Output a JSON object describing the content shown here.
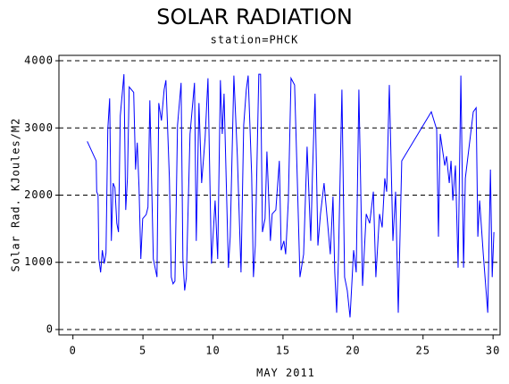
{
  "chart_data": {
    "type": "line",
    "title": "SOLAR RADIATION",
    "subtitle": "station=PHCK",
    "x_label": "MAY 2011",
    "y_label": "Solar Rad. KJoules/M2",
    "xlim": [
      -1,
      30.5
    ],
    "ylim": [
      -80,
      4080
    ],
    "xticks": [
      0,
      5,
      10,
      15,
      20,
      25,
      30
    ],
    "yticks": [
      0,
      1000,
      2000,
      3000,
      4000
    ],
    "grid": true,
    "series": [
      {
        "name": "Solar Rad.",
        "color": "#0000ff",
        "x": [
          1.02,
          1.66,
          1.7,
          1.79,
          1.85,
          1.98,
          2.1,
          2.23,
          2.36,
          2.49,
          2.62,
          2.74,
          2.87,
          3.0,
          3.13,
          3.25,
          3.38,
          3.64,
          3.77,
          3.89,
          4.02,
          4.34,
          4.47,
          4.59,
          4.72,
          4.85,
          4.98,
          5.23,
          5.36,
          5.49,
          5.74,
          6.0,
          6.13,
          6.32,
          6.51,
          6.64,
          6.89,
          7.02,
          7.15,
          7.28,
          7.47,
          7.72,
          7.85,
          7.98,
          8.1,
          8.36,
          8.68,
          8.81,
          9.0,
          9.19,
          9.44,
          9.64,
          9.89,
          10.15,
          10.34,
          10.53,
          10.66,
          10.79,
          11.1,
          11.23,
          11.49,
          11.74,
          12.0,
          12.19,
          12.38,
          12.51,
          12.76,
          12.89,
          13.02,
          13.27,
          13.4,
          13.53,
          13.72,
          13.85,
          14.1,
          14.23,
          14.49,
          14.74,
          14.87,
          15.06,
          15.19,
          15.38,
          15.57,
          15.83,
          16.02,
          16.21,
          16.47,
          16.72,
          16.98,
          17.1,
          17.29,
          17.49,
          17.68,
          17.93,
          18.19,
          18.38,
          18.57,
          18.7,
          18.83,
          18.96,
          19.21,
          19.4,
          19.59,
          19.79,
          20.04,
          20.23,
          20.42,
          20.68,
          20.94,
          21.19,
          21.45,
          21.63,
          21.89,
          22.08,
          22.27,
          22.4,
          22.59,
          22.85,
          23.04,
          23.23,
          23.48,
          25.59,
          25.97,
          26.1,
          26.23,
          26.55,
          26.68,
          26.87,
          27.0,
          27.13,
          27.31,
          27.5,
          27.7,
          27.89,
          28.02,
          28.59,
          28.79,
          28.91,
          29.04,
          29.3,
          29.62,
          29.81,
          29.94,
          30.06
        ],
        "values": [
          2800,
          2510,
          2050,
          2000,
          1050,
          850,
          1180,
          980,
          1140,
          2980,
          3440,
          1320,
          2180,
          2110,
          1580,
          1450,
          3180,
          3800,
          1780,
          2250,
          3610,
          3530,
          2380,
          2780,
          2110,
          1050,
          1650,
          1710,
          1820,
          3410,
          1050,
          780,
          3370,
          3110,
          3570,
          3710,
          2250,
          780,
          680,
          720,
          3040,
          3670,
          1050,
          580,
          780,
          2910,
          3670,
          1320,
          3370,
          2180,
          2850,
          3740,
          980,
          1920,
          1050,
          3710,
          2910,
          3510,
          920,
          1380,
          3780,
          2580,
          850,
          3040,
          3570,
          3780,
          2310,
          780,
          1250,
          3800,
          3800,
          1450,
          1650,
          2650,
          1320,
          1720,
          1780,
          2510,
          1180,
          1320,
          1120,
          1920,
          3740,
          3640,
          2250,
          780,
          1120,
          2720,
          1320,
          2310,
          3510,
          1250,
          1720,
          2180,
          1580,
          1120,
          1980,
          850,
          250,
          1050,
          3570,
          780,
          580,
          180,
          1180,
          850,
          3570,
          650,
          1720,
          1580,
          2050,
          780,
          1720,
          1520,
          2250,
          2050,
          3640,
          1320,
          2050,
          250,
          2510,
          3240,
          2980,
          1380,
          2910,
          2440,
          2580,
          2180,
          2510,
          1920,
          2440,
          920,
          3780,
          920,
          2250,
          3240,
          3300,
          1380,
          1920,
          1120,
          250,
          2380,
          780,
          1450
        ]
      }
    ]
  }
}
